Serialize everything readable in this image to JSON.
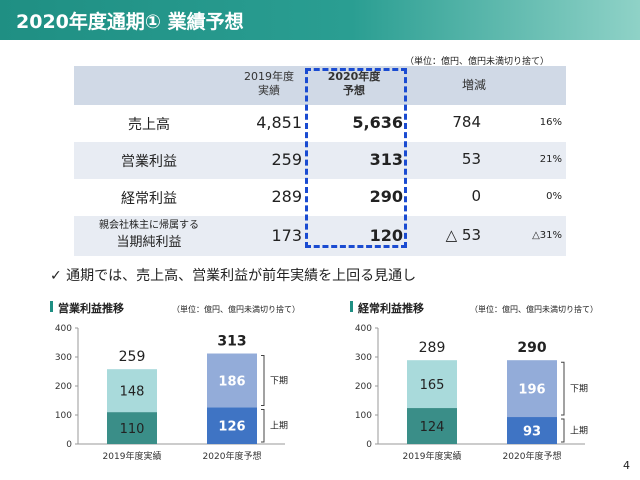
{
  "header": {
    "title": "2020年度通期① 業績予想"
  },
  "unit_note": "（単位：億円、億円未満切り捨て）",
  "table": {
    "col_prev": [
      "2019年度",
      "実績"
    ],
    "col_fcst": [
      "2020年度",
      "予想"
    ],
    "col_change": "増減",
    "rows": [
      {
        "label": [
          "売上高"
        ],
        "prev": "4,851",
        "fcst": "5,636",
        "diff": "784",
        "pct": "16%"
      },
      {
        "label": [
          "営業利益"
        ],
        "prev": "259",
        "fcst": "313",
        "diff": "53",
        "pct": "21%"
      },
      {
        "label": [
          "経常利益"
        ],
        "prev": "289",
        "fcst": "290",
        "diff": "0",
        "pct": "0%"
      },
      {
        "label": [
          "親会社株主に帰属する",
          "当期純利益"
        ],
        "prev": "173",
        "fcst": "120",
        "diff": "△ 53",
        "pct": "△31%"
      }
    ]
  },
  "note": "✓  通期では、売上高、営業利益が前年実績を上回る見通し",
  "charts_meta": [
    {
      "title": "営業利益推移",
      "unit": "（単位：億円、億円未満切り捨て）"
    },
    {
      "title": "経常利益推移",
      "unit": "（単位：億円、億円未満切り捨て）"
    }
  ],
  "chart_data": [
    {
      "type": "bar",
      "title": "営業利益推移",
      "categories": [
        "2019年度実績",
        "2020年度予想"
      ],
      "series": [
        {
          "name": "上期",
          "values": [
            110,
            126
          ]
        },
        {
          "name": "下期",
          "values": [
            148,
            186
          ]
        }
      ],
      "totals": [
        "259",
        "313"
      ],
      "ylim": [
        0,
        400
      ],
      "yticks": [
        "0",
        "100",
        "200",
        "300",
        "400"
      ],
      "colors": {
        "prev_lower": "#3a8e88",
        "prev_upper": "#a9dadb",
        "fcst_lower": "#3f74c4",
        "fcst_upper": "#93acd9"
      }
    },
    {
      "type": "bar",
      "title": "経常利益推移",
      "categories": [
        "2019年度実績",
        "2020年度予想"
      ],
      "series": [
        {
          "name": "上期",
          "values": [
            124,
            93
          ]
        },
        {
          "name": "下期",
          "values": [
            165,
            196
          ]
        }
      ],
      "totals": [
        "289",
        "290"
      ],
      "ylim": [
        0,
        400
      ],
      "yticks": [
        "0",
        "100",
        "200",
        "300",
        "400"
      ],
      "colors": {
        "prev_lower": "#3a8e88",
        "prev_upper": "#a9dadb",
        "fcst_lower": "#3f74c4",
        "fcst_upper": "#93acd9"
      }
    }
  ],
  "page_number": "4"
}
